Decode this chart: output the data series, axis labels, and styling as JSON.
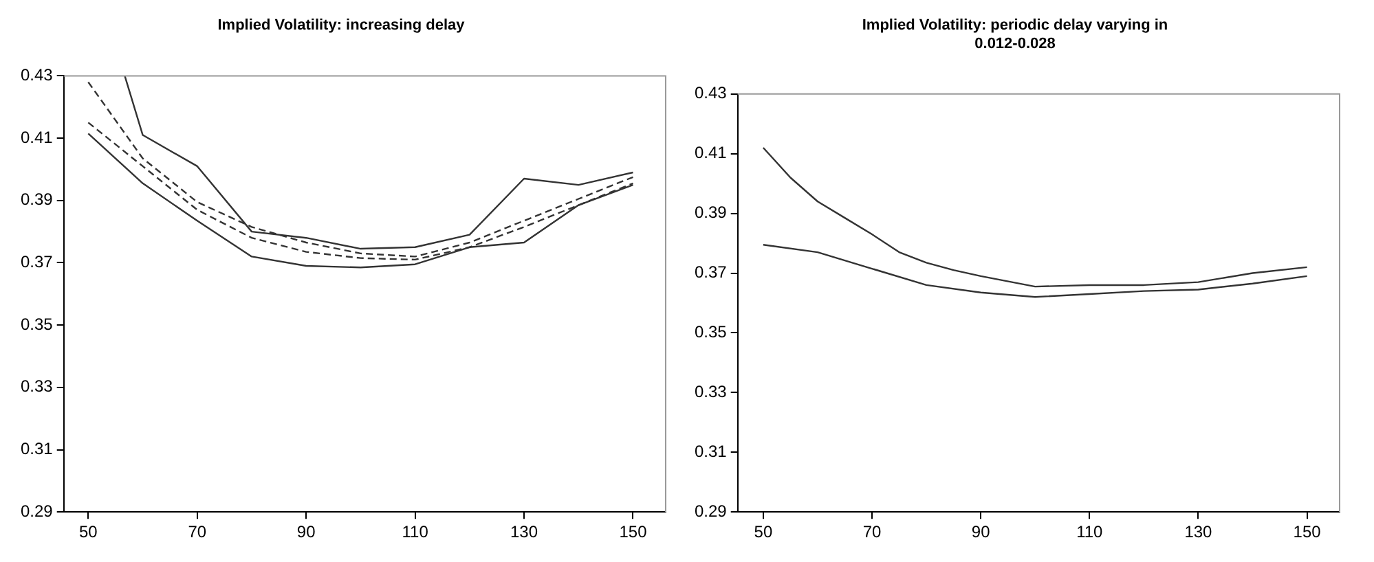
{
  "chart_data": [
    {
      "type": "line",
      "title": "Implied Volatility: increasing delay",
      "xlim": [
        45.5,
        156
      ],
      "xticks": [
        50,
        70,
        90,
        110,
        130,
        150
      ],
      "ylim": [
        0.29,
        0.43
      ],
      "yticks": [
        0.29,
        0.31,
        0.33,
        0.35,
        0.37,
        0.39,
        0.41,
        0.43
      ],
      "legend": false,
      "grid": false,
      "series": [
        {
          "color": "#333333",
          "line_style": "solid",
          "x": [
            56.7,
            60,
            70,
            80,
            90,
            100,
            110,
            120,
            130,
            140,
            150
          ],
          "values": [
            0.43,
            0.411,
            0.401,
            0.38,
            0.378,
            0.3745,
            0.375,
            0.379,
            0.397,
            0.395,
            0.399
          ]
        },
        {
          "color": "#333333",
          "line_style": "dashed",
          "x": [
            50,
            60,
            70,
            80,
            90,
            100,
            110,
            120,
            130,
            140,
            150
          ],
          "values": [
            0.428,
            0.4035,
            0.3895,
            0.3815,
            0.3765,
            0.373,
            0.372,
            0.3765,
            0.3835,
            0.3905,
            0.3975
          ]
        },
        {
          "color": "#333333",
          "line_style": "dashed",
          "x": [
            50,
            60,
            70,
            80,
            90,
            100,
            110,
            120,
            130,
            140,
            150
          ],
          "values": [
            0.415,
            0.401,
            0.387,
            0.378,
            0.3735,
            0.3715,
            0.371,
            0.375,
            0.3815,
            0.3885,
            0.3955
          ]
        },
        {
          "color": "#333333",
          "line_style": "solid",
          "x": [
            50,
            60,
            70,
            80,
            90,
            100,
            110,
            120,
            130,
            140,
            150
          ],
          "values": [
            0.4115,
            0.3955,
            0.3835,
            0.372,
            0.369,
            0.3685,
            0.3695,
            0.375,
            0.3765,
            0.3885,
            0.395
          ]
        }
      ]
    },
    {
      "type": "line",
      "title": "Implied Volatility: periodic delay varying in 0.012-0.028",
      "xlim": [
        45.3,
        156
      ],
      "xticks": [
        50,
        70,
        90,
        110,
        130,
        150
      ],
      "ylim": [
        0.29,
        0.43
      ],
      "yticks": [
        0.29,
        0.31,
        0.33,
        0.35,
        0.37,
        0.39,
        0.41,
        0.43
      ],
      "legend": false,
      "grid": false,
      "series": [
        {
          "color": "#333333",
          "line_style": "solid",
          "x": [
            50,
            55,
            60,
            65,
            70,
            75,
            80,
            85,
            90,
            100,
            110,
            120,
            130,
            140,
            150
          ],
          "values": [
            0.412,
            0.402,
            0.394,
            0.3885,
            0.383,
            0.377,
            0.3735,
            0.371,
            0.369,
            0.3655,
            0.366,
            0.366,
            0.367,
            0.37,
            0.372
          ]
        },
        {
          "color": "#333333",
          "line_style": "solid",
          "x": [
            50,
            60,
            70,
            80,
            90,
            100,
            110,
            120,
            130,
            140,
            150
          ],
          "values": [
            0.3795,
            0.377,
            0.3715,
            0.366,
            0.3635,
            0.362,
            0.363,
            0.364,
            0.3645,
            0.3665,
            0.369
          ]
        }
      ]
    }
  ]
}
